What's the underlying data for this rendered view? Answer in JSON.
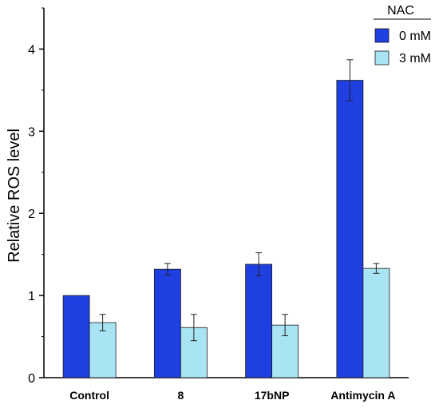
{
  "chart_data": {
    "type": "bar",
    "categories": [
      "Control",
      "8",
      "17bNP",
      "Antimycin A"
    ],
    "series": [
      {
        "name": "0 mM",
        "color": "#1f3fe0",
        "values": [
          1.0,
          1.32,
          1.38,
          3.62
        ],
        "errors": [
          0.0,
          0.07,
          0.14,
          0.25
        ]
      },
      {
        "name": "3 mM",
        "color": "#a8e4f4",
        "values": [
          0.67,
          0.61,
          0.64,
          1.33
        ],
        "errors": [
          0.1,
          0.16,
          0.13,
          0.06
        ]
      }
    ],
    "title": "",
    "xlabel": "",
    "ylabel": "Relative ROS level",
    "ylim": [
      0,
      4.5
    ],
    "yticks": [
      0,
      1,
      2,
      3,
      4
    ],
    "legend": {
      "title": "NAC",
      "position": "top-right"
    },
    "grid": false
  }
}
